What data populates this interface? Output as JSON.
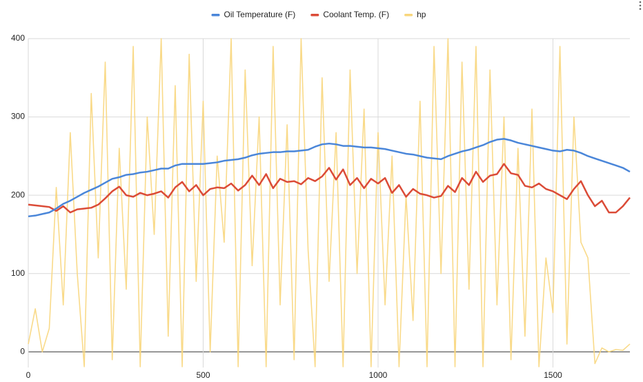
{
  "chart_data": {
    "type": "line",
    "x": [
      0,
      20,
      40,
      60,
      80,
      100,
      120,
      140,
      160,
      180,
      200,
      220,
      240,
      260,
      280,
      300,
      320,
      340,
      360,
      380,
      400,
      420,
      440,
      460,
      480,
      500,
      520,
      540,
      560,
      580,
      600,
      620,
      640,
      660,
      680,
      700,
      720,
      740,
      760,
      780,
      800,
      820,
      840,
      860,
      880,
      900,
      920,
      940,
      960,
      980,
      1000,
      1020,
      1040,
      1060,
      1080,
      1100,
      1120,
      1140,
      1160,
      1180,
      1200,
      1220,
      1240,
      1260,
      1280,
      1300,
      1320,
      1340,
      1360,
      1380,
      1400,
      1420,
      1440,
      1460,
      1480,
      1500,
      1520,
      1540,
      1560,
      1580,
      1600,
      1620,
      1640,
      1660,
      1680,
      1700,
      1720
    ],
    "series": [
      {
        "name": "Oil Temperature (F)",
        "color": "#4a86d9",
        "values": [
          173,
          174,
          176,
          178,
          183,
          189,
          193,
          198,
          203,
          207,
          211,
          216,
          221,
          223,
          226,
          227,
          229,
          230,
          232,
          234,
          234,
          238,
          240,
          240,
          240,
          240,
          241,
          242,
          244,
          245,
          246,
          248,
          251,
          253,
          254,
          255,
          255,
          256,
          256,
          257,
          258,
          262,
          265,
          266,
          265,
          263,
          263,
          262,
          261,
          261,
          260,
          259,
          257,
          255,
          253,
          252,
          250,
          248,
          247,
          246,
          250,
          253,
          256,
          258,
          261,
          264,
          268,
          271,
          272,
          270,
          267,
          265,
          263,
          261,
          259,
          257,
          256,
          258,
          257,
          254,
          250,
          247,
          244,
          241,
          238,
          235,
          230
        ]
      },
      {
        "name": "Coolant Temp. (F)",
        "color": "#db4b37",
        "values": [
          188,
          187,
          186,
          185,
          180,
          186,
          178,
          182,
          183,
          184,
          188,
          196,
          205,
          211,
          200,
          198,
          203,
          200,
          202,
          205,
          197,
          210,
          217,
          205,
          213,
          200,
          208,
          210,
          209,
          215,
          206,
          213,
          225,
          213,
          227,
          209,
          221,
          217,
          218,
          214,
          222,
          218,
          224,
          235,
          220,
          233,
          213,
          222,
          209,
          221,
          215,
          222,
          203,
          213,
          198,
          208,
          202,
          200,
          197,
          199,
          212,
          204,
          222,
          213,
          230,
          217,
          225,
          227,
          240,
          228,
          226,
          212,
          210,
          215,
          208,
          205,
          200,
          195,
          208,
          218,
          200,
          186,
          193,
          178,
          178,
          186,
          197
        ]
      },
      {
        "name": "hp",
        "color": "#f8d67c",
        "values": [
          10,
          55,
          0,
          30,
          210,
          60,
          280,
          100,
          -19,
          330,
          120,
          370,
          -10,
          260,
          80,
          390,
          -19,
          300,
          150,
          400,
          20,
          340,
          -19,
          380,
          90,
          320,
          0,
          250,
          140,
          400,
          -19,
          360,
          110,
          300,
          -19,
          390,
          60,
          290,
          -10,
          400,
          130,
          -19,
          350,
          90,
          280,
          -19,
          360,
          100,
          310,
          -19,
          280,
          60,
          250,
          -19,
          200,
          40,
          320,
          -19,
          390,
          100,
          400,
          -19,
          370,
          80,
          390,
          -19,
          360,
          60,
          300,
          -10,
          260,
          20,
          310,
          -19,
          120,
          50,
          390,
          10,
          300,
          140,
          120,
          -15,
          5,
          0,
          3,
          2,
          10
        ]
      }
    ],
    "xlim": [
      0,
      1720
    ],
    "xticks": [
      0,
      500,
      1000,
      1500
    ],
    "ylim": [
      -20,
      400
    ],
    "yticks": [
      0,
      100,
      200,
      300,
      400
    ],
    "grid": true,
    "legend": "top"
  }
}
